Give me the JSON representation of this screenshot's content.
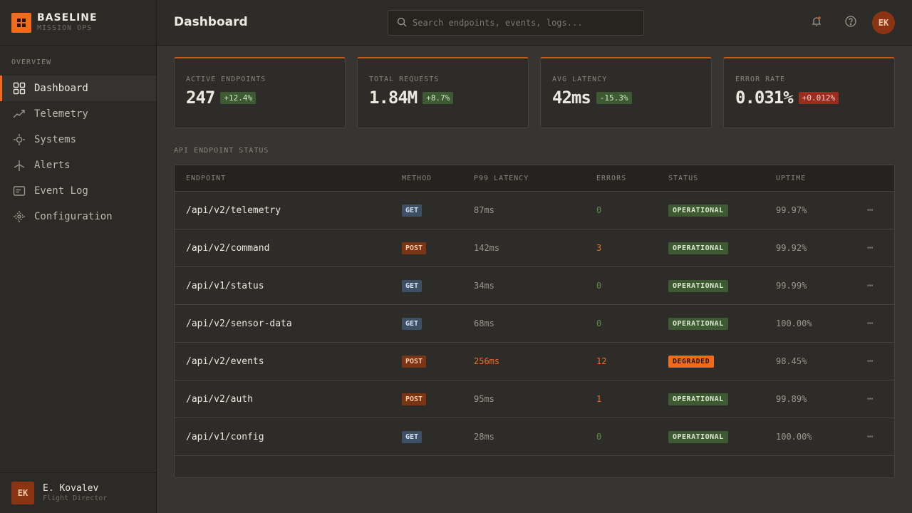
{
  "brand": {
    "title": "BASELINE",
    "subtitle": "MISSION OPS"
  },
  "nav": {
    "section": "OVERVIEW",
    "items": [
      {
        "label": "Dashboard",
        "icon": "grid-icon",
        "active": true
      },
      {
        "label": "Telemetry",
        "icon": "trend-icon"
      },
      {
        "label": "Systems",
        "icon": "gear-icon"
      },
      {
        "label": "Alerts",
        "icon": "antenna-icon"
      },
      {
        "label": "Event Log",
        "icon": "log-icon"
      },
      {
        "label": "Configuration",
        "icon": "settings-icon"
      }
    ]
  },
  "user": {
    "initials": "EK",
    "name": "E. Kovalev",
    "role": "Flight Director"
  },
  "header": {
    "title": "Dashboard",
    "search_placeholder": "Search endpoints, events, logs...",
    "avatar": "EK"
  },
  "stats": [
    {
      "label": "ACTIVE ENDPOINTS",
      "value": "247",
      "delta": "+12.4%",
      "tone": "good"
    },
    {
      "label": "TOTAL REQUESTS",
      "value": "1.84M",
      "delta": "+8.7%",
      "tone": "good"
    },
    {
      "label": "AVG LATENCY",
      "value": "42ms",
      "delta": "-15.3%",
      "tone": "good"
    },
    {
      "label": "ERROR RATE",
      "value": "0.031%",
      "delta": "+0.012%",
      "tone": "bad"
    }
  ],
  "table": {
    "title": "API ENDPOINT STATUS",
    "columns": [
      "ENDPOINT",
      "METHOD",
      "P99 LATENCY",
      "ERRORS",
      "STATUS",
      "UPTIME"
    ],
    "rows": [
      {
        "endpoint": "/api/v2/telemetry",
        "method": "GET",
        "latency": "87ms",
        "errors": "0",
        "status": "OPERATIONAL",
        "uptime": "99.97%"
      },
      {
        "endpoint": "/api/v2/command",
        "method": "POST",
        "latency": "142ms",
        "errors": "3",
        "status": "OPERATIONAL",
        "uptime": "99.92%"
      },
      {
        "endpoint": "/api/v1/status",
        "method": "GET",
        "latency": "34ms",
        "errors": "0",
        "status": "OPERATIONAL",
        "uptime": "99.99%"
      },
      {
        "endpoint": "/api/v2/sensor-data",
        "method": "GET",
        "latency": "68ms",
        "errors": "0",
        "status": "OPERATIONAL",
        "uptime": "100.00%"
      },
      {
        "endpoint": "/api/v2/events",
        "method": "POST",
        "latency": "256ms",
        "errors": "12",
        "status": "DEGRADED",
        "uptime": "98.45%"
      },
      {
        "endpoint": "/api/v2/auth",
        "method": "POST",
        "latency": "95ms",
        "errors": "1",
        "status": "OPERATIONAL",
        "uptime": "99.89%"
      },
      {
        "endpoint": "/api/v1/config",
        "method": "GET",
        "latency": "28ms",
        "errors": "0",
        "status": "OPERATIONAL",
        "uptime": "100.00%"
      }
    ],
    "more_label": "⋯"
  },
  "colors": {
    "accent": "#f26b1d",
    "error_zero": "#5f8a4a",
    "error_nonzero": "#f26b1d",
    "latency_warn": "#f26b1d"
  }
}
